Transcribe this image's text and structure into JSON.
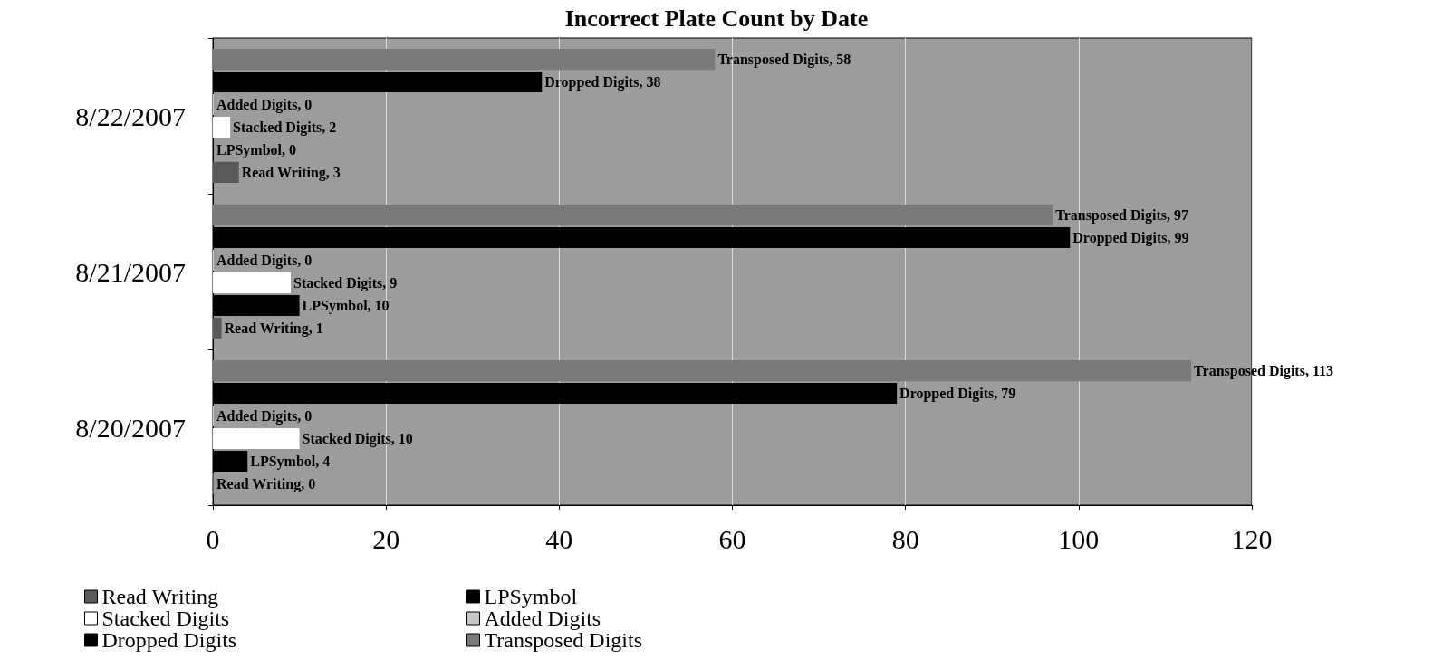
{
  "chart_data": {
    "type": "bar",
    "orientation": "horizontal",
    "title": "Incorrect Plate Count by Date",
    "categories": [
      "8/22/2007",
      "8/21/2007",
      "8/20/2007"
    ],
    "series": [
      {
        "name": "Transposed Digits",
        "color": "#7a7a7a",
        "values": [
          58,
          97,
          113
        ],
        "value_labels": [
          "Transposed Digits, 58",
          "Transposed Digits, 97",
          "Transposed Digits, 113"
        ]
      },
      {
        "name": "Dropped Digits",
        "color": "#000000",
        "values": [
          38,
          99,
          79
        ],
        "value_labels": [
          "Dropped Digits, 38",
          "Dropped Digits, 99",
          "Dropped Digits, 79"
        ]
      },
      {
        "name": "Added Digits",
        "color": "#c8c8c8",
        "values": [
          0,
          0,
          0
        ],
        "value_labels": [
          "Added Digits, 0",
          "Added Digits, 0",
          "Added Digits, 0"
        ]
      },
      {
        "name": "Stacked Digits",
        "color": "#ffffff",
        "values": [
          2,
          9,
          10
        ],
        "value_labels": [
          "Stacked Digits, 2",
          "Stacked Digits, 9",
          "Stacked Digits, 10"
        ]
      },
      {
        "name": "LPSymbol",
        "color": "#000000",
        "values": [
          0,
          10,
          4
        ],
        "value_labels": [
          "LPSymbol, 0",
          "LPSymbol, 10",
          "LPSymbol, 4"
        ]
      },
      {
        "name": "Read Writing",
        "color": "#5a5a5a",
        "values": [
          3,
          1,
          0
        ],
        "value_labels": [
          "Read Writing, 3",
          "Read Writing, 1",
          "Read Writing, 0"
        ]
      }
    ],
    "xlim": [
      0,
      120
    ],
    "xticks": [
      0,
      20,
      40,
      60,
      80,
      100,
      120
    ],
    "grid": "x",
    "legend": "bottom"
  }
}
